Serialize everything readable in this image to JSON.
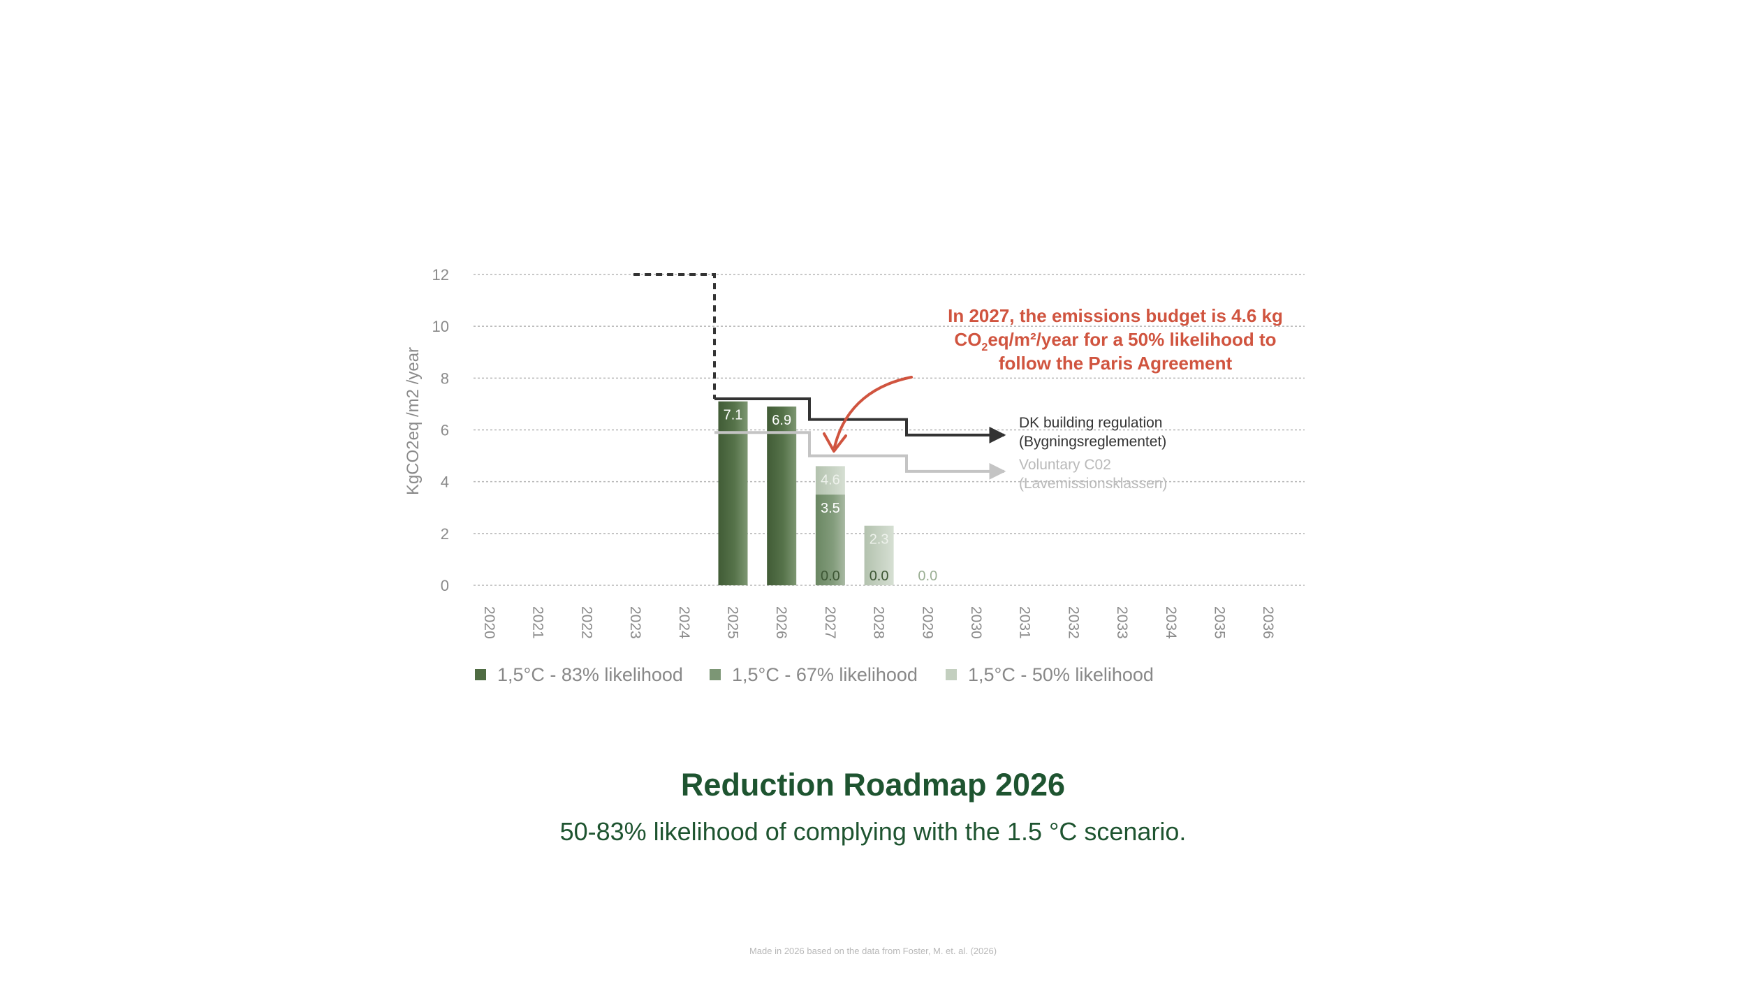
{
  "chart_data": {
    "type": "bar",
    "ylabel": "KgCO2eq /m2 /year",
    "ylim": [
      0,
      12
    ],
    "yticks": [
      0,
      2,
      4,
      6,
      8,
      10,
      12
    ],
    "grid": true,
    "categories": [
      "2020",
      "2021",
      "2022",
      "2023",
      "2024",
      "2025",
      "2026",
      "2027",
      "2028",
      "2029",
      "2030",
      "2031",
      "2032",
      "2033",
      "2034",
      "2035",
      "2036"
    ],
    "bars": [
      {
        "category": "2025",
        "series": "1,5°C - 83% likelihood",
        "value": 7.1,
        "label": "7.1"
      },
      {
        "category": "2026",
        "series": "1,5°C - 83% likelihood",
        "value": 6.9,
        "label": "6.9"
      },
      {
        "category": "2027",
        "series": "1,5°C - 50% likelihood",
        "value": 4.6,
        "label": "4.6"
      },
      {
        "category": "2027",
        "series": "1,5°C - 67% likelihood",
        "value": 3.5,
        "label": "3.5"
      },
      {
        "category": "2027",
        "series": "1,5°C - 83% likelihood",
        "value": 0.0,
        "label": "0.0"
      },
      {
        "category": "2028",
        "series": "1,5°C - 50% likelihood",
        "value": 2.3,
        "label": "2.3"
      },
      {
        "category": "2028",
        "series": "1,5°C - 67% likelihood",
        "value": 0.0,
        "label": "0.0"
      },
      {
        "category": "2029",
        "series": "1,5°C - 50% likelihood",
        "value": 0.0,
        "label": "0.0"
      }
    ],
    "legend": [
      {
        "label": "1,5°C - 83% likelihood",
        "color": "#4f6c43"
      },
      {
        "label": "1,5°C - 67% likelihood",
        "color": "#7c9675"
      },
      {
        "label": "1,5°C - 50% likelihood",
        "color": "#c3cfbf"
      }
    ],
    "lines": [
      {
        "name": "DK building regulation",
        "label_line1": "DK building regulation",
        "label_line2": "(Bygningsreglementet)",
        "color": "#333333",
        "steps": [
          {
            "year": 2025,
            "value": 7.2
          },
          {
            "year": 2027,
            "value": 6.4
          },
          {
            "year": 2029,
            "value": 5.8
          }
        ],
        "dashed_history": {
          "from_year": 2023,
          "value": 12
        }
      },
      {
        "name": "Voluntary C02",
        "label_line1": "Voluntary C02",
        "label_line2": "(Lavemissionsklassen)",
        "color": "#c4c4c4",
        "steps": [
          {
            "year": 2025,
            "value": 5.9
          },
          {
            "year": 2027,
            "value": 5.0
          },
          {
            "year": 2029,
            "value": 4.4
          }
        ]
      }
    ],
    "annotation": {
      "line1": "In 2027, the emissions budget is 4.6 kg",
      "line2_prefix": "CO",
      "line2_sub": "2",
      "line2_suffix": "eq/m²/year for a 50% likelihood to",
      "line3": "follow the Paris Agreement",
      "color": "#d0543f"
    }
  },
  "title": "Reduction Roadmap 2026",
  "subtitle": "50-83% likelihood of complying with the 1.5 °C scenario.",
  "footnote": "Made in 2026 based on the data from Foster, M. et. al. (2026)"
}
